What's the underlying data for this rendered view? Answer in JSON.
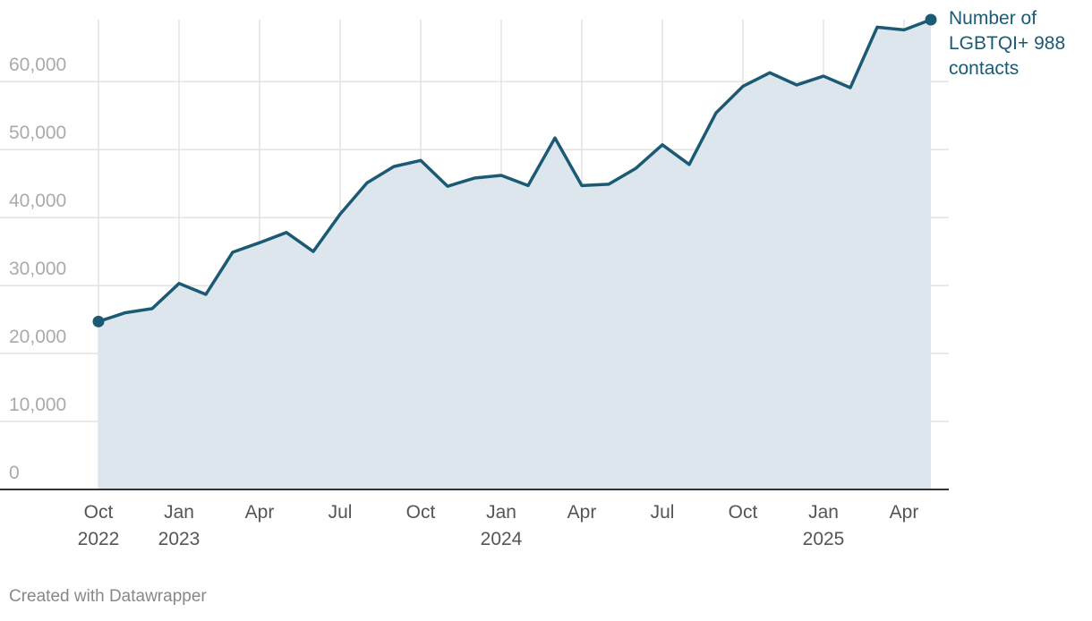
{
  "chart_data": {
    "type": "line",
    "categories": [
      "Oct\n2022",
      null,
      null,
      "Jan\n2023",
      null,
      null,
      "Apr",
      null,
      null,
      "Jul",
      null,
      null,
      "Oct",
      null,
      null,
      "Jan\n2024",
      null,
      null,
      "Apr",
      null,
      null,
      "Jul",
      null,
      null,
      "Oct",
      null,
      null,
      "Jan\n2025",
      null,
      null,
      "Apr",
      null
    ],
    "series": [
      {
        "name": "Number of LGBTQI+ 988 contacts",
        "color": "#1b5a74",
        "values": [
          24700,
          26000,
          26600,
          30300,
          28700,
          34900,
          36300,
          37800,
          35000,
          40500,
          45100,
          47500,
          48400,
          44600,
          45800,
          46200,
          44700,
          51700,
          44700,
          44900,
          47200,
          50700,
          47800,
          55400,
          59300,
          61300,
          59500,
          60800,
          59100,
          68000,
          67600,
          69100
        ]
      }
    ],
    "area_color": "#dce6ec",
    "ylim": [
      0,
      69100
    ],
    "yticks": [
      0,
      {
        "value": 10000,
        "label": "10,000"
      },
      {
        "value": 20000,
        "label": "20,000"
      },
      {
        "value": 30000,
        "label": "30,000"
      },
      {
        "value": 40000,
        "label": "40,000"
      },
      {
        "value": 50000,
        "label": "50,000"
      },
      {
        "value": 60000,
        "label": "60,000"
      }
    ],
    "grid": true,
    "footer": "Created with Datawrapper"
  }
}
